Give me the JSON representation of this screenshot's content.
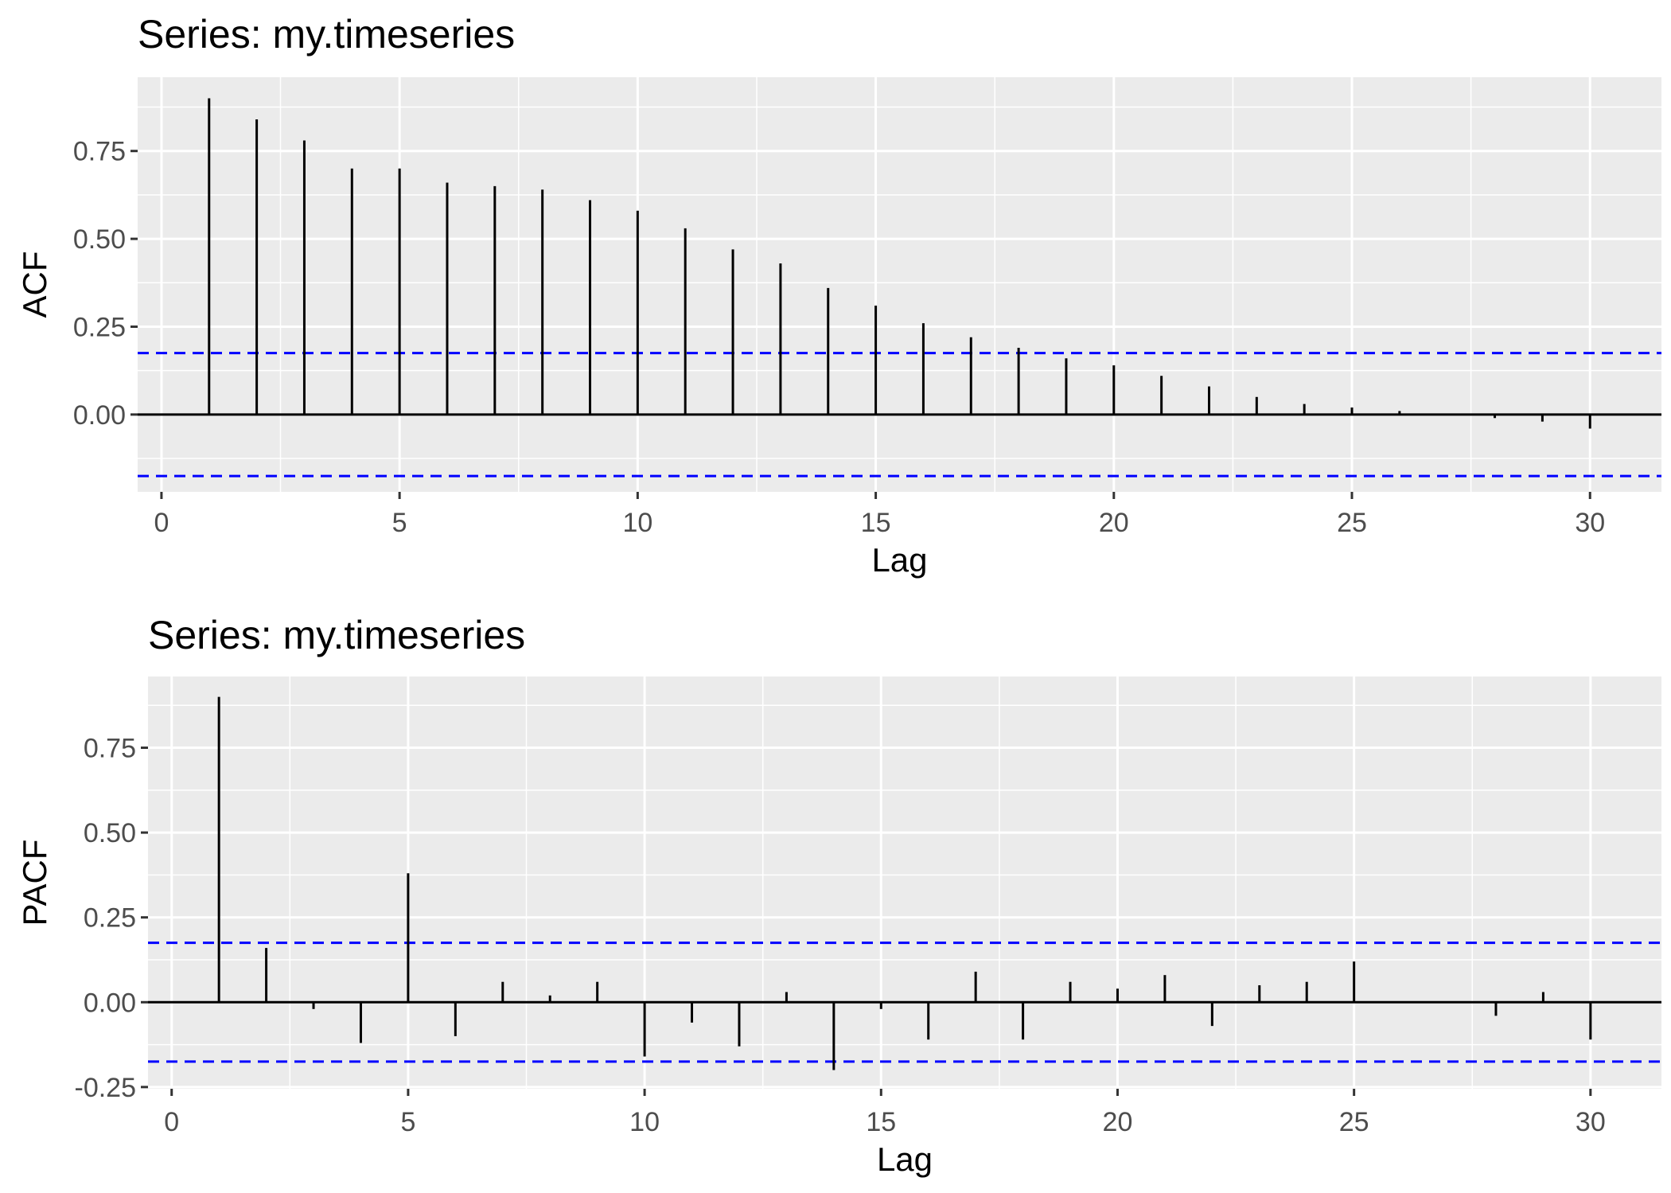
{
  "chart_data": [
    {
      "type": "bar",
      "title": "Series: my.timeseries",
      "xlabel": "Lag",
      "ylabel": "ACF",
      "xlim": [
        -0.5,
        31.5
      ],
      "ylim": [
        -0.22,
        0.96
      ],
      "x_ticks": [
        0,
        5,
        10,
        15,
        20,
        25,
        30
      ],
      "y_ticks": [
        0.0,
        0.25,
        0.5,
        0.75
      ],
      "y_tick_labels": [
        "0.00",
        "0.25",
        "0.50",
        "0.75"
      ],
      "grid": true,
      "confidence_bound": 0.175,
      "x": [
        1,
        2,
        3,
        4,
        5,
        6,
        7,
        8,
        9,
        10,
        11,
        12,
        13,
        14,
        15,
        16,
        17,
        18,
        19,
        20,
        21,
        22,
        23,
        24,
        25,
        26,
        27,
        28,
        29,
        30
      ],
      "values": [
        0.9,
        0.84,
        0.78,
        0.7,
        0.7,
        0.66,
        0.65,
        0.64,
        0.61,
        0.58,
        0.53,
        0.47,
        0.43,
        0.36,
        0.31,
        0.26,
        0.22,
        0.19,
        0.16,
        0.14,
        0.11,
        0.08,
        0.05,
        0.03,
        0.02,
        0.01,
        0.0,
        -0.01,
        -0.02,
        -0.04
      ],
      "colors": {
        "spike": "#000000",
        "bound": "#0000ff",
        "panel": "#ebebeb",
        "grid": "#ffffff"
      }
    },
    {
      "type": "bar",
      "title": "Series: my.timeseries",
      "xlabel": "Lag",
      "ylabel": "PACF",
      "xlim": [
        -0.5,
        31.5
      ],
      "ylim": [
        -0.255,
        0.96
      ],
      "x_ticks": [
        0,
        5,
        10,
        15,
        20,
        25,
        30
      ],
      "y_ticks": [
        -0.25,
        0.0,
        0.25,
        0.5,
        0.75
      ],
      "y_tick_labels": [
        "-0.25",
        "0.00",
        "0.25",
        "0.50",
        "0.75"
      ],
      "grid": true,
      "confidence_bound": 0.175,
      "x": [
        1,
        2,
        3,
        4,
        5,
        6,
        7,
        8,
        9,
        10,
        11,
        12,
        13,
        14,
        15,
        16,
        17,
        18,
        19,
        20,
        21,
        22,
        23,
        24,
        25,
        26,
        27,
        28,
        29,
        30
      ],
      "values": [
        0.9,
        0.16,
        -0.02,
        -0.12,
        0.38,
        -0.1,
        0.06,
        0.02,
        0.06,
        -0.16,
        -0.06,
        -0.13,
        0.03,
        -0.2,
        -0.02,
        -0.11,
        0.09,
        -0.11,
        0.06,
        0.04,
        0.08,
        -0.07,
        0.05,
        0.06,
        0.12,
        0.0,
        0.0,
        -0.04,
        0.03,
        -0.11
      ],
      "colors": {
        "spike": "#000000",
        "bound": "#0000ff",
        "panel": "#ebebeb",
        "grid": "#ffffff"
      }
    }
  ]
}
